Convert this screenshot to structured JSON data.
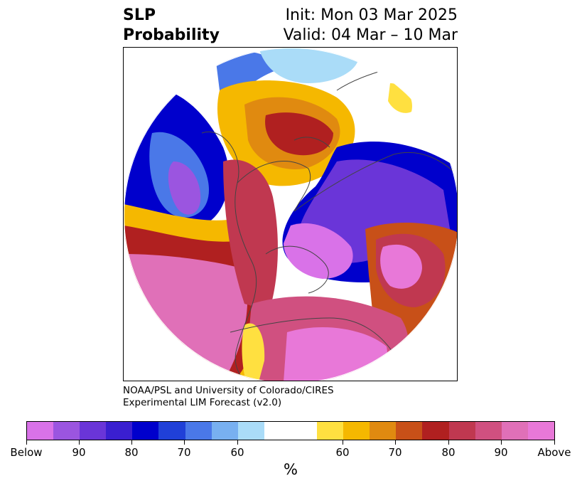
{
  "header": {
    "title_line1": "SLP",
    "title_line2": "Probability",
    "init": "Init: Mon 03 Mar 2025",
    "valid": "Valid: 04 Mar – 10 Mar"
  },
  "credit": {
    "line1": "NOAA/PSL and University of Colorado/CIRES",
    "line2": "Experimental LIM Forecast (v2.0)"
  },
  "colorbar": {
    "colors": [
      "#d972e8",
      "#9b55e0",
      "#6a35d8",
      "#3a1fd0",
      "#0000cc",
      "#2040d8",
      "#4a78e8",
      "#78b0f0",
      "#aadcf8",
      "#ffffff",
      "#ffe040",
      "#f5b800",
      "#e08a10",
      "#c85018",
      "#b02020",
      "#c03850",
      "#d05080",
      "#e070b8",
      "#e878d8"
    ],
    "labels": [
      "Below",
      "90",
      "80",
      "70",
      "60",
      "60",
      "70",
      "80",
      "90",
      "Above"
    ],
    "unit": "%"
  }
}
